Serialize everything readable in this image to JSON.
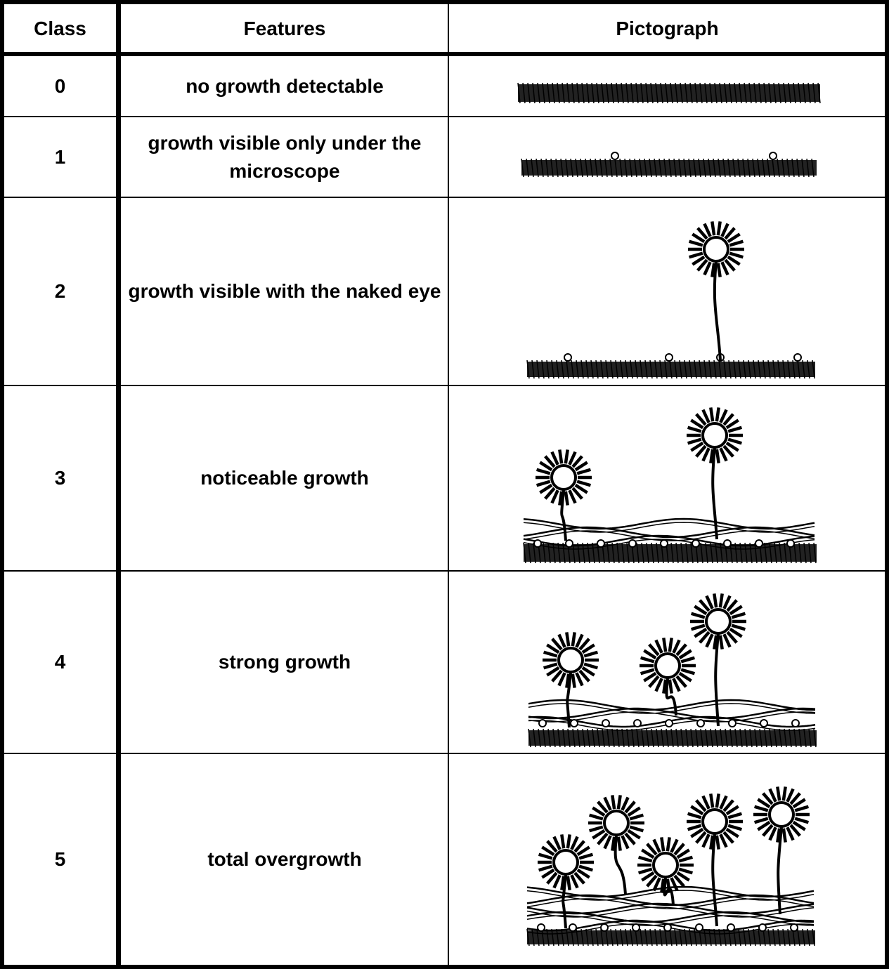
{
  "header": {
    "columns": [
      "Class",
      "Features",
      "Pictograph"
    ]
  },
  "table": {
    "rows": [
      [
        "0",
        "no growth detectable"
      ],
      [
        "1",
        "growth visible only under the microscope"
      ],
      [
        "2",
        "growth visible with the naked eye"
      ],
      [
        "3",
        "noticeable growth"
      ],
      [
        "4",
        "strong growth"
      ],
      [
        "5",
        "total overgrowth"
      ]
    ]
  }
}
